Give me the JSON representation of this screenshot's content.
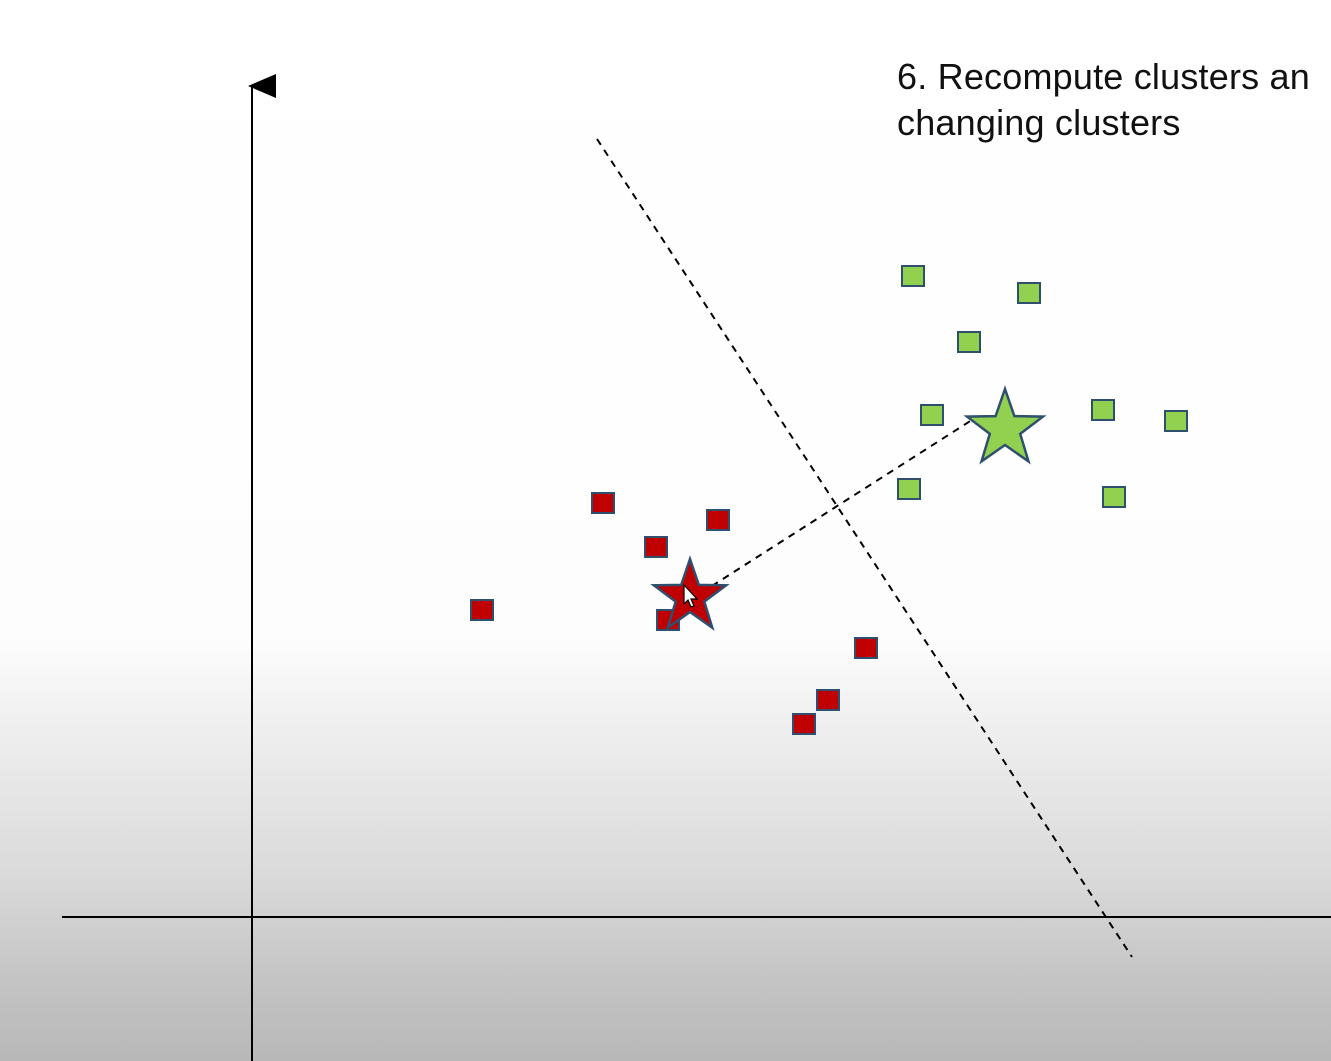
{
  "slide": {
    "title_line1": "6. Recompute clusters an",
    "title_line2": "changing clusters"
  },
  "diagram": {
    "type": "k-means clustering step",
    "colors": {
      "red_fill": "#C00000",
      "green_fill": "#92D050",
      "marker_stroke": "#2F4F6F",
      "line": "#000000"
    },
    "clusters": [
      {
        "id": "red",
        "marker": "square",
        "centroid_marker": "star",
        "centroid_icon": "mouse-cursor-icon"
      },
      {
        "id": "green",
        "marker": "square",
        "centroid_marker": "star"
      }
    ],
    "lines": [
      "centroid-connector (dashed)",
      "decision-boundary (dashed, perpendicular bisector)"
    ]
  }
}
